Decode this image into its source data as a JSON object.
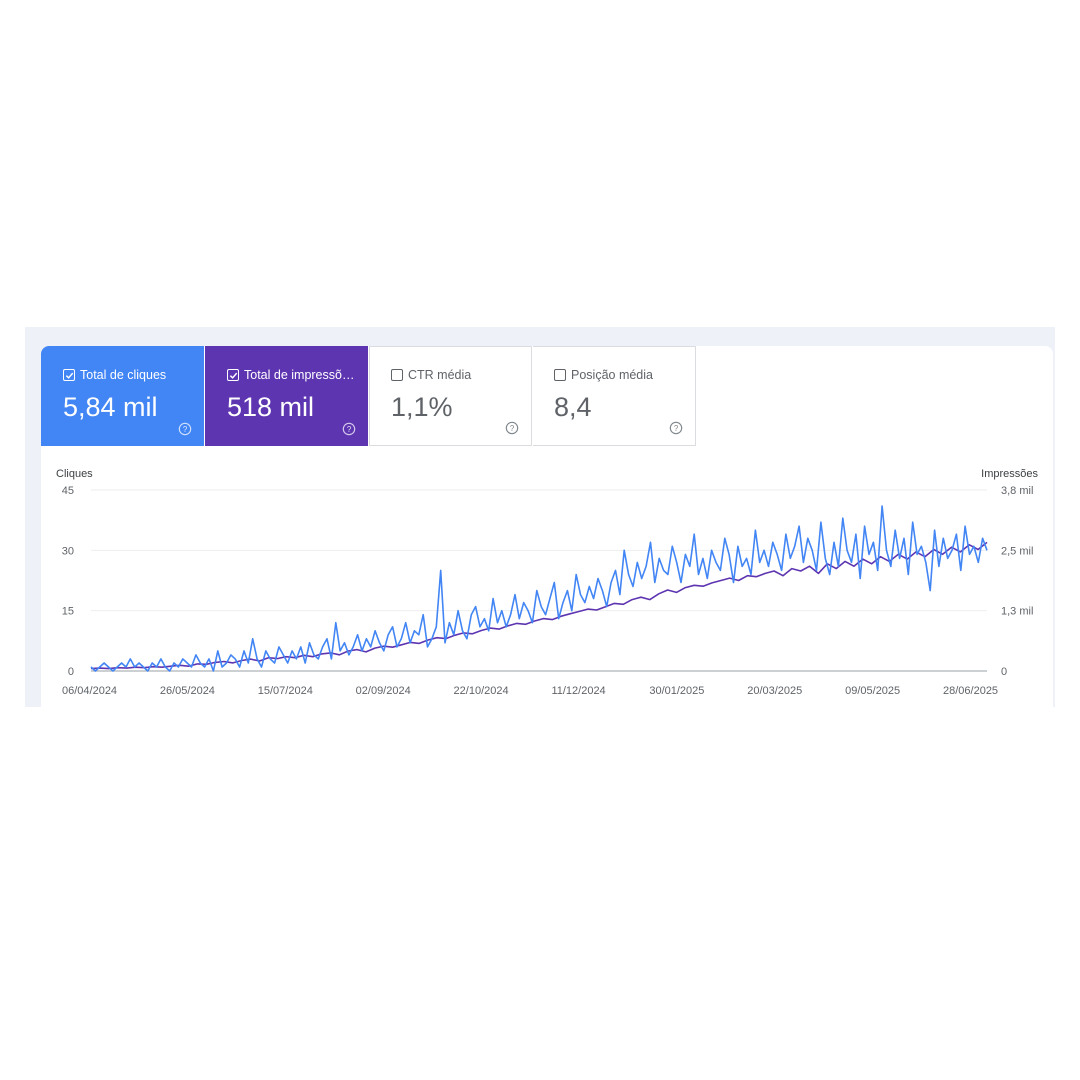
{
  "metrics": [
    {
      "label": "Total de cliques",
      "value": "5,84 mil",
      "checked": true,
      "color": "#4285f4"
    },
    {
      "label": "Total de impressõ…",
      "value": "518 mil",
      "checked": true,
      "color": "#5e35b1"
    },
    {
      "label": "CTR média",
      "value": "1,1%",
      "checked": false,
      "color": "#ffffff"
    },
    {
      "label": "Posição média",
      "value": "8,4",
      "checked": false,
      "color": "#ffffff"
    }
  ],
  "chart_data": {
    "type": "line",
    "left_axis_title": "Cliques",
    "right_axis_title": "Impressões",
    "left_ticks": [
      "0",
      "15",
      "30",
      "45"
    ],
    "left_tick_values": [
      0,
      15,
      30,
      45
    ],
    "right_ticks": [
      "0",
      "1,3 mil",
      "2,5 mil",
      "3,8 mil"
    ],
    "x_tick_labels": [
      "06/04/2024",
      "26/05/2024",
      "15/07/2024",
      "02/09/2024",
      "22/10/2024",
      "11/12/2024",
      "30/01/2025",
      "20/03/2025",
      "09/05/2025",
      "28/06/2025"
    ],
    "ylim_left": [
      0,
      45
    ],
    "ylim_right": [
      0,
      3.8
    ],
    "grid": true,
    "series": [
      {
        "name": "Total de cliques",
        "axis": "left",
        "color": "#4285f4",
        "x_start": "06/04/2024",
        "x_end": "06/08/2025",
        "values": [
          1,
          0,
          1,
          2,
          1,
          0,
          1,
          2,
          1,
          3,
          1,
          2,
          1,
          0,
          2,
          1,
          3,
          1,
          0,
          2,
          1,
          3,
          2,
          1,
          4,
          2,
          1,
          3,
          0,
          5,
          1,
          2,
          4,
          3,
          1,
          5,
          2,
          8,
          3,
          1,
          5,
          3,
          2,
          6,
          4,
          2,
          5,
          3,
          6,
          2,
          7,
          4,
          3,
          6,
          8,
          3,
          12,
          5,
          7,
          4,
          6,
          9,
          5,
          8,
          6,
          10,
          7,
          5,
          9,
          11,
          6,
          8,
          12,
          7,
          10,
          9,
          14,
          6,
          8,
          11,
          25,
          7,
          12,
          9,
          15,
          10,
          8,
          14,
          16,
          11,
          13,
          10,
          18,
          12,
          15,
          11,
          14,
          19,
          13,
          17,
          15,
          12,
          20,
          16,
          14,
          18,
          22,
          13,
          17,
          20,
          15,
          24,
          19,
          17,
          21,
          18,
          23,
          20,
          16,
          22,
          25,
          19,
          30,
          24,
          21,
          27,
          23,
          26,
          32,
          22,
          28,
          25,
          24,
          31,
          27,
          22,
          29,
          26,
          34,
          24,
          28,
          23,
          30,
          27,
          25,
          33,
          29,
          22,
          31,
          26,
          28,
          24,
          35,
          27,
          30,
          26,
          32,
          29,
          25,
          34,
          28,
          31,
          36,
          27,
          33,
          30,
          25,
          37,
          28,
          24,
          32,
          26,
          38,
          30,
          27,
          34,
          23,
          36,
          29,
          32,
          25,
          41,
          30,
          26,
          35,
          28,
          33,
          24,
          37,
          29,
          31,
          27,
          20,
          35,
          26,
          33,
          28,
          30,
          34,
          25,
          36,
          29,
          31,
          27,
          33,
          30
        ]
      },
      {
        "name": "Total de impressões",
        "axis": "right",
        "color": "#5e35b1",
        "x_start": "06/04/2024",
        "x_end": "06/08/2025",
        "values": [
          0.05,
          0.06,
          0.05,
          0.07,
          0.06,
          0.08,
          0.07,
          0.09,
          0.08,
          0.1,
          0.12,
          0.1,
          0.15,
          0.14,
          0.18,
          0.2,
          0.17,
          0.22,
          0.25,
          0.21,
          0.28,
          0.26,
          0.3,
          0.28,
          0.33,
          0.3,
          0.36,
          0.38,
          0.34,
          0.42,
          0.45,
          0.4,
          0.48,
          0.52,
          0.5,
          0.55,
          0.6,
          0.58,
          0.65,
          0.7,
          0.68,
          0.75,
          0.8,
          0.78,
          0.85,
          0.9,
          0.88,
          0.95,
          1.0,
          0.98,
          1.05,
          1.1,
          1.08,
          1.15,
          1.2,
          1.25,
          1.3,
          1.28,
          1.35,
          1.42,
          1.4,
          1.5,
          1.55,
          1.5,
          1.62,
          1.7,
          1.65,
          1.75,
          1.8,
          1.78,
          1.85,
          1.9,
          1.95,
          1.9,
          2.0,
          1.98,
          2.05,
          2.1,
          2.0,
          2.15,
          2.1,
          2.2,
          2.05,
          2.25,
          2.15,
          2.3,
          2.2,
          2.35,
          2.25,
          2.4,
          2.3,
          2.45,
          2.35,
          2.5,
          2.4,
          2.55,
          2.45,
          2.6,
          2.5,
          2.65,
          2.55,
          2.7
        ]
      }
    ]
  }
}
